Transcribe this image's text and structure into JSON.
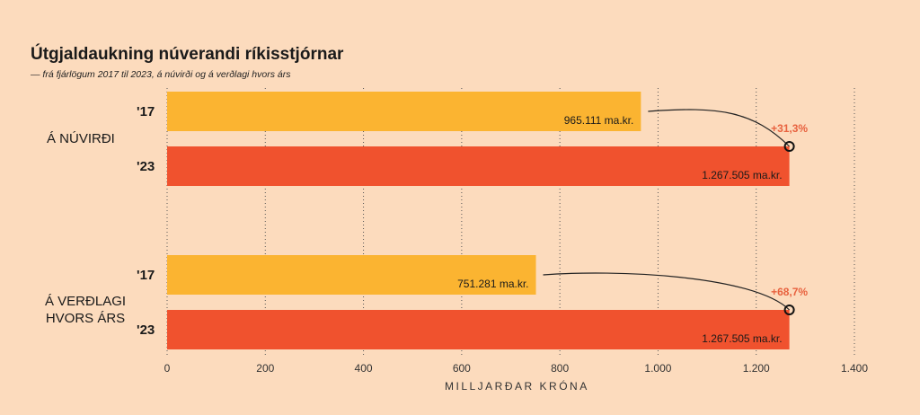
{
  "chart_data": {
    "type": "bar",
    "orientation": "horizontal",
    "title": "Útgjaldaukning núverandi ríkisstjórnar",
    "subtitle": "— frá fjárlögum 2017 til 2023, á núvirði og á verðlagi hvors árs",
    "xlabel": "MILLJARÐAR KRÓNA",
    "xlim": [
      0,
      1400
    ],
    "xticks": [
      0,
      200,
      400,
      600,
      800,
      1000,
      1200,
      1400
    ],
    "xtick_labels": [
      "0",
      "200",
      "400",
      "600",
      "800",
      "1.000",
      "1.200",
      "1.400"
    ],
    "grid": true,
    "groups": [
      {
        "label": "Á NÚVIRÐI",
        "bars": [
          {
            "year": "'17",
            "value": 965.111,
            "label": "965.111 ma.kr.",
            "color": "#fbb431"
          },
          {
            "year": "'23",
            "value": 1267.505,
            "label": "1.267.505 ma.kr.",
            "color": "#f0522e"
          }
        ],
        "change": "+31,3%"
      },
      {
        "label": "Á VERÐLAGI HVORS ÁRS",
        "label_lines": [
          "Á VERÐLAGI",
          "HVORS ÁRS"
        ],
        "bars": [
          {
            "year": "'17",
            "value": 751.281,
            "label": "751.281 ma.kr.",
            "color": "#fbb431"
          },
          {
            "year": "'23",
            "value": 1267.505,
            "label": "1.267.505 ma.kr.",
            "color": "#f0522e"
          }
        ],
        "change": "+68,7%"
      }
    ],
    "change_color": "#e8623f"
  }
}
